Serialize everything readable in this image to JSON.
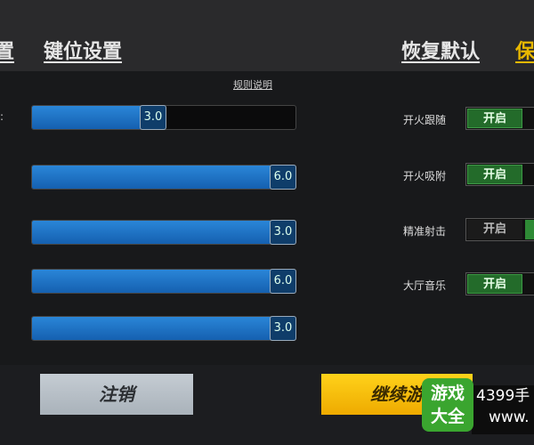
{
  "header": {
    "tab_left_partial": "置",
    "tab_keys": "键位设置",
    "restore_default": "恢复默认",
    "save_partial": "保"
  },
  "rules_link": "规则说明",
  "sliders": [
    {
      "label_partial": ":",
      "value": "3.0",
      "fill_percent": 50
    },
    {
      "label_partial": "",
      "value": "6.0",
      "fill_percent": 100
    },
    {
      "label_partial": "",
      "value": "3.0",
      "fill_percent": 100
    },
    {
      "label_partial": "",
      "value": "6.0",
      "fill_percent": 100
    },
    {
      "label_partial": "",
      "value": "3.0",
      "fill_percent": 100
    }
  ],
  "toggles": [
    {
      "label": "开火跟随",
      "state": "开启",
      "on": true
    },
    {
      "label": "开火吸附",
      "state": "开启",
      "on": true
    },
    {
      "label": "精准射击",
      "state": "开启",
      "on": false
    },
    {
      "label": "大厅音乐",
      "state": "开启",
      "on": true
    }
  ],
  "buttons": {
    "cancel": "注销",
    "continue": "继续游"
  },
  "watermark": {
    "logo_text": "游戏大全",
    "line1": "4399手",
    "line2": "www."
  },
  "colors": {
    "slider_fill": "#1f74c8",
    "toggle_on": "#236b2a",
    "continue": "#f5c000",
    "save": "#e8b800"
  }
}
